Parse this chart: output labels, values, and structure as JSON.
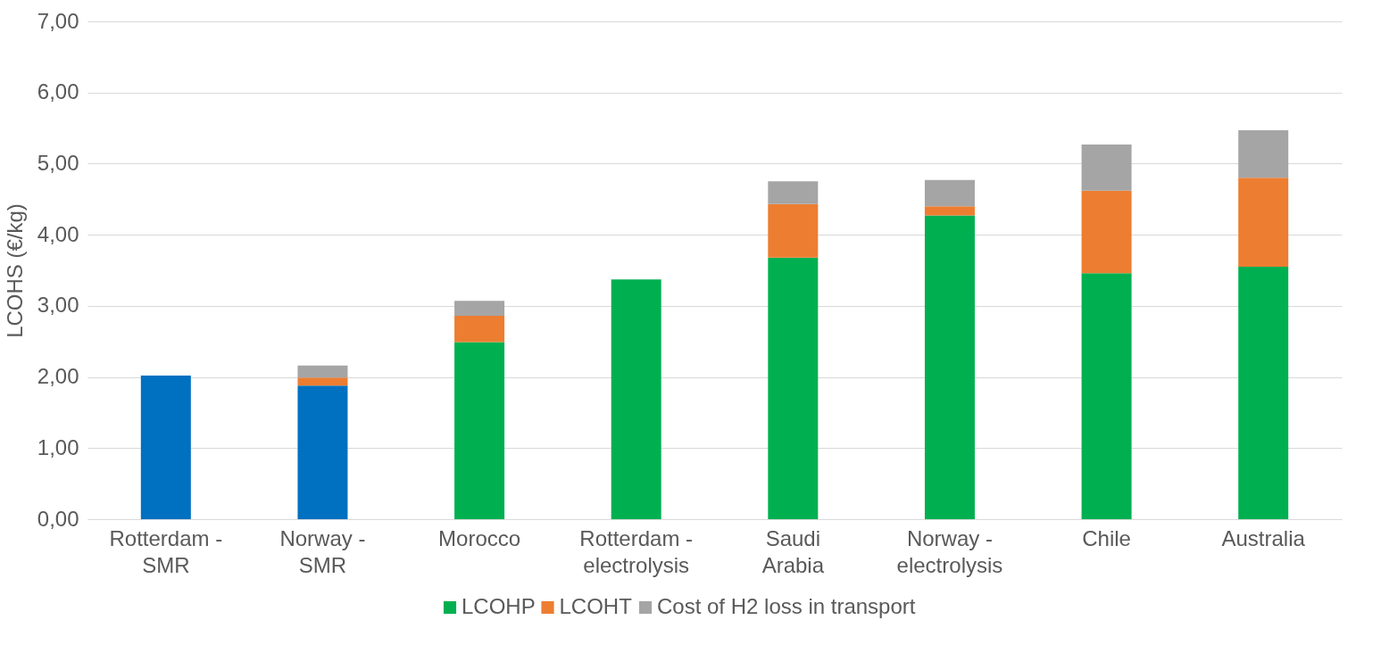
{
  "chart_data": {
    "type": "bar",
    "stacked": true,
    "ylabel": "LCOHS (€/kg)",
    "categories": [
      "Rotterdam - SMR",
      "Norway - SMR",
      "Morocco",
      "Rotterdam - electrolysis",
      "Saudi Arabia",
      "Norway - electrolysis",
      "Chile",
      "Australia"
    ],
    "series": [
      {
        "name": "LCOHP",
        "color": "#00b050",
        "colors": [
          "#0070c0",
          "#0070c0",
          "#00b050",
          "#00b050",
          "#00b050",
          "#00b050",
          "#00b050",
          "#00b050"
        ],
        "values": [
          2.02,
          1.88,
          2.49,
          3.37,
          3.68,
          4.27,
          3.46,
          3.55
        ]
      },
      {
        "name": "LCOHT",
        "color": "#ed7d31",
        "values": [
          null,
          0.11,
          0.37,
          null,
          0.75,
          0.13,
          1.16,
          1.25
        ]
      },
      {
        "name": "Cost of H2 loss in transport",
        "color": "#a5a5a5",
        "values": [
          null,
          0.17,
          0.21,
          null,
          0.32,
          0.37,
          0.65,
          0.67
        ]
      }
    ],
    "ylim": [
      0,
      7
    ],
    "yticks": [
      {
        "value": 0,
        "label": "0,00"
      },
      {
        "value": 1,
        "label": "1,00"
      },
      {
        "value": 2,
        "label": "2,00"
      },
      {
        "value": 3,
        "label": "3,00"
      },
      {
        "value": 4,
        "label": "4,00"
      },
      {
        "value": 5,
        "label": "5,00"
      },
      {
        "value": 6,
        "label": "6,00"
      },
      {
        "value": 7,
        "label": "7,00"
      }
    ],
    "grid": "y",
    "legend": "bottom"
  }
}
